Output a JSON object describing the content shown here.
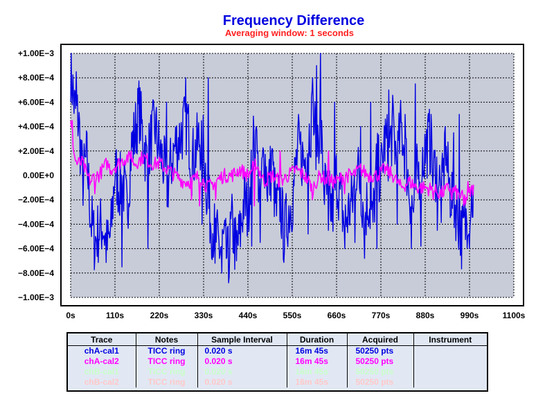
{
  "chart_data": {
    "type": "line",
    "title": "Frequency Difference",
    "subtitle": "Averaging window: 1 seconds",
    "xlabel": "",
    "ylabel": "",
    "xlim": [
      0,
      1100
    ],
    "ylim": [
      -0.001,
      0.001
    ],
    "x_ticks": [
      "0s",
      "110s",
      "220s",
      "330s",
      "440s",
      "550s",
      "660s",
      "770s",
      "880s",
      "990s",
      "1100s"
    ],
    "y_ticks": [
      "+1.00E−3",
      "+8.00E−4",
      "+6.00E−4",
      "+4.00E−4",
      "+2.00E−4",
      "0.00E+0",
      "−2.00E−4",
      "−4.00E−4",
      "−6.00E−4",
      "−8.00E−4",
      "−1.00E−3"
    ],
    "grid": true,
    "series": [
      {
        "name": "chA-cal1",
        "color": "#0000e0",
        "x": [
          0,
          10,
          20,
          30,
          40,
          50,
          60,
          70,
          80,
          90,
          100,
          110,
          120,
          130,
          140,
          150,
          160,
          170,
          180,
          190,
          200,
          210,
          220,
          230,
          240,
          250,
          260,
          270,
          280,
          290,
          300,
          310,
          320,
          330,
          340,
          350,
          360,
          370,
          380,
          390,
          400,
          410,
          420,
          430,
          440,
          450,
          460,
          470,
          480,
          490,
          500,
          510,
          520,
          530,
          540,
          550,
          560,
          570,
          580,
          590,
          600,
          610,
          620,
          630,
          640,
          650,
          660,
          670,
          680,
          690,
          700,
          710,
          720,
          730,
          740,
          750,
          760,
          770,
          780,
          790,
          800,
          810,
          820,
          830,
          840,
          850,
          860,
          870,
          880,
          890,
          900,
          910,
          920,
          930,
          940,
          950,
          960,
          970,
          980,
          990,
          1000
        ],
        "values": [
          0.00088,
          0.00055,
          0.00045,
          -5e-05,
          0.00015,
          -0.00035,
          -0.00055,
          -0.00045,
          -0.0004,
          -0.0006,
          -0.00048,
          5e-05,
          -0.0001,
          -5e-05,
          -0.0003,
          0.0002,
          0.00035,
          0.00055,
          0.0003,
          0.0001,
          0.0003,
          0.0004,
          0.0002,
          0.0001,
          -0.0001,
          0.0001,
          0.00025,
          0.0003,
          0.0004,
          0.00045,
          0.0001,
          0.0002,
          0.0003,
          0.00025,
          -0.0002,
          -0.0004,
          -0.0005,
          -0.0006,
          -0.00055,
          -0.0007,
          -0.0004,
          -0.0006,
          -0.0005,
          -0.0002,
          -0.0003,
          0.0002,
          0.0003,
          -0.0002,
          0.0002,
          -0.0001,
          0.0001,
          -0.0003,
          -0.0002,
          -0.0005,
          -0.0003,
          -0.0002,
          0.0001,
          0.0002,
          0.0001,
          0.0003,
          0.0005,
          0.0003,
          0.0004,
          -0.0001,
          -0.0002,
          -0.0003,
          0.0,
          -0.0002,
          -0.0004,
          -0.0003,
          -0.0002,
          0.0001,
          -0.0001,
          -0.0003,
          -0.0002,
          -0.0004,
          0.0001,
          0.0,
          0.0003,
          0.0002,
          0.0004,
          0.0001,
          0.0004,
          0.0002,
          -0.0001,
          -0.0003,
          0.0,
          0.0001,
          0.0002,
          0.0003,
          0.0,
          0.0001,
          -0.0002,
          0.0002,
          -0.0001,
          -0.0002,
          -0.0003,
          -0.0005,
          -0.0004,
          -0.0002,
          -0.0002
        ],
        "spikes_x": [
          14,
          128,
          192,
          238,
          285,
          326,
          342,
          358,
          375,
          392,
          412,
          450,
          460,
          470,
          500,
          540,
          565,
          590,
          600,
          610,
          620,
          625,
          640,
          655,
          680,
          705,
          720,
          730,
          745,
          760,
          790,
          810,
          830,
          845,
          855,
          870,
          895,
          910,
          930,
          950,
          965,
          990
        ],
        "spikes_v": [
          0.00085,
          -0.00075,
          -0.0006,
          0.0006,
          0.0008,
          -0.0004,
          0.0008,
          -0.00072,
          -0.0008,
          -0.00088,
          -0.0007,
          -0.00058,
          0.0004,
          -0.00055,
          0.00022,
          -0.0004,
          0.0005,
          -0.00048,
          0.0008,
          0.0009,
          0.001,
          0.0003,
          -0.00045,
          0.0006,
          -0.0006,
          -0.00055,
          0.0004,
          -0.00068,
          0.0006,
          -0.0006,
          0.0007,
          -0.0004,
          0.0005,
          -0.0006,
          0.00075,
          -0.00058,
          0.0005,
          -0.00045,
          0.0004,
          0.00035,
          0.0005,
          -0.0006
        ]
      },
      {
        "name": "chA-cal2",
        "color": "#ff00ff",
        "x": [
          0,
          5,
          10,
          15,
          20,
          30,
          40,
          50,
          60,
          70,
          80,
          90,
          100,
          120,
          140,
          160,
          180,
          200,
          220,
          240,
          260,
          280,
          300,
          320,
          340,
          360,
          380,
          400,
          420,
          440,
          460,
          480,
          500,
          520,
          540,
          560,
          580,
          600,
          620,
          640,
          660,
          680,
          700,
          720,
          740,
          760,
          780,
          800,
          820,
          840,
          860,
          880,
          900,
          920,
          940,
          960,
          980,
          1000
        ],
        "values": [
          0.00042,
          0.0003,
          0.00015,
          0.0001,
          0.0001,
          0.0001,
          0.0,
          -5e-05,
          0.0,
          0.0,
          5e-05,
          0.0001,
          5e-05,
          0.0001,
          0.00015,
          0.0001,
          0.00015,
          0.0001,
          0.0001,
          5e-05,
          0.0,
          -5e-05,
          -5e-05,
          0.0,
          -0.0001,
          -5e-05,
          0.0,
          0.0,
          5e-05,
          0.0,
          0.0001,
          -5e-05,
          0.0,
          -5e-05,
          0.0,
          5e-05,
          0.0,
          -0.0001,
          0.0,
          -5e-05,
          -5e-05,
          0.0,
          0.0,
          5e-05,
          0.0,
          0.0,
          5e-05,
          0.0,
          -0.0001,
          -5e-05,
          -0.0001,
          -0.0001,
          -0.00012,
          -0.00015,
          -0.0001,
          -0.00015,
          -0.0002,
          -0.0001
        ],
        "spikes_x": [
          4,
          60,
          150,
          210,
          300,
          320,
          360,
          455,
          520,
          600,
          640,
          680,
          900,
          945,
          975,
          985
        ],
        "spikes_v": [
          0.00045,
          -0.00015,
          0.0002,
          0.00015,
          -0.0002,
          -0.00025,
          -0.0002,
          -0.00025,
          0.0002,
          -0.0002,
          0.0002,
          -0.00015,
          -0.0002,
          -0.0002,
          -0.00025,
          -5e-05
        ]
      }
    ]
  },
  "legend": {
    "headers": [
      "Trace",
      "Notes",
      "Sample Interval",
      "Duration",
      "Acquired",
      "Instrument"
    ],
    "rows": [
      {
        "trace": "chA-cal1",
        "notes": "TICC ring",
        "interval": "0.020 s",
        "duration": "16m 45s",
        "acquired": "50250 pts",
        "instrument": "",
        "color": "#0000e0"
      },
      {
        "trace": "chA-cal2",
        "notes": "TICC ring",
        "interval": "0.020 s",
        "duration": "16m 45s",
        "acquired": "50250 pts",
        "instrument": "",
        "color": "#ff00ff"
      },
      {
        "trace": "chB-cal1",
        "notes": "TICC ring",
        "interval": "0.020 s",
        "duration": "16m 45s",
        "acquired": "50250 pts",
        "instrument": "",
        "color": "#c8ffc8"
      },
      {
        "trace": "chB-cal2",
        "notes": "TICC ring",
        "interval": "0.020 s",
        "duration": "16m 45s",
        "acquired": "50250 pts",
        "instrument": "",
        "color": "#ffc8c8"
      }
    ]
  },
  "colors": {
    "plot_bg": "#c8ccd8",
    "title": "#0000e0",
    "subtitle": "#ff2020",
    "zero_label": "#0000e0"
  }
}
